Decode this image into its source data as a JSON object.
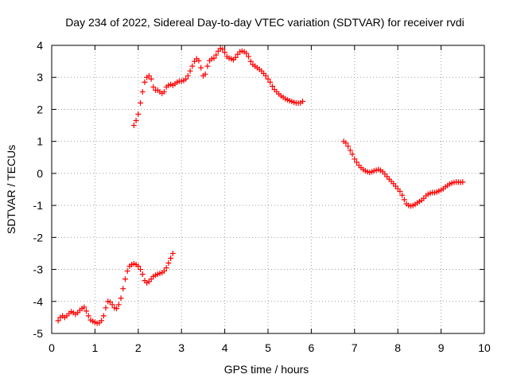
{
  "chart_data": {
    "type": "scatter",
    "title": "Day 234 of 2022, Sidereal Day-to-day VTEC variation (SDTVAR) for receiver rvdi",
    "xlabel": "GPS time / hours",
    "ylabel": "SDTVAR / TECUs",
    "xlim": [
      0,
      10
    ],
    "ylim": [
      -5,
      4
    ],
    "xticks": [
      "0",
      "1",
      "2",
      "3",
      "4",
      "5",
      "6",
      "7",
      "8",
      "9",
      "10"
    ],
    "yticks": [
      "-5",
      "-4",
      "-3",
      "-2",
      "-1",
      "0",
      "1",
      "2",
      "3",
      "4"
    ],
    "grid": true,
    "legend": "none",
    "marker": "plus",
    "color": "#ff0000",
    "series": [
      {
        "x": [
          0.15,
          0.2,
          0.25,
          0.3,
          0.35,
          0.4,
          0.45,
          0.5,
          0.55,
          0.6,
          0.65,
          0.7,
          0.75,
          0.8,
          0.85,
          0.9,
          0.95,
          1.0,
          1.05,
          1.1,
          1.15,
          1.2,
          1.25,
          1.3,
          1.35,
          1.4,
          1.45,
          1.5,
          1.55,
          1.6,
          1.65,
          1.7,
          1.75,
          1.8,
          1.85,
          1.9,
          1.95,
          2.0,
          2.05,
          2.1,
          2.15,
          2.2,
          2.25,
          2.3,
          2.35,
          2.4,
          2.45,
          2.5,
          2.55,
          2.6,
          2.65,
          2.7,
          2.75,
          2.8
        ],
        "y": [
          -4.6,
          -4.5,
          -4.45,
          -4.5,
          -4.45,
          -4.38,
          -4.32,
          -4.35,
          -4.4,
          -4.35,
          -4.28,
          -4.22,
          -4.18,
          -4.3,
          -4.45,
          -4.58,
          -4.62,
          -4.65,
          -4.68,
          -4.67,
          -4.6,
          -4.45,
          -4.2,
          -4.0,
          -4.02,
          -4.1,
          -4.2,
          -4.22,
          -4.1,
          -3.9,
          -3.6,
          -3.3,
          -3.05,
          -2.9,
          -2.85,
          -2.82,
          -2.85,
          -2.9,
          -3.0,
          -3.15,
          -3.35,
          -3.42,
          -3.38,
          -3.3,
          -3.22,
          -3.18,
          -3.15,
          -3.12,
          -3.1,
          -3.05,
          -2.95,
          -2.8,
          -2.65,
          -2.5
        ]
      },
      {
        "x": [
          1.9,
          1.95,
          2.0,
          2.05,
          2.1,
          2.15,
          2.2,
          2.25,
          2.3,
          2.35,
          2.4,
          2.45,
          2.5,
          2.55,
          2.6,
          2.65,
          2.7,
          2.75,
          2.8,
          2.85,
          2.9,
          2.95,
          3.0,
          3.05,
          3.1,
          3.15,
          3.2,
          3.25,
          3.3,
          3.35,
          3.4,
          3.45,
          3.5,
          3.55,
          3.6,
          3.65,
          3.7,
          3.75,
          3.8,
          3.85,
          3.9,
          3.95,
          4.0,
          4.05,
          4.1,
          4.15,
          4.2,
          4.25,
          4.3,
          4.35,
          4.4,
          4.45,
          4.5,
          4.55,
          4.6,
          4.65,
          4.7,
          4.75,
          4.8,
          4.85,
          4.9,
          4.95,
          5.0,
          5.05,
          5.1,
          5.15,
          5.2,
          5.25,
          5.3,
          5.35,
          5.4,
          5.45,
          5.5,
          5.55,
          5.6,
          5.65,
          5.7,
          5.75,
          5.8
        ],
        "y": [
          1.5,
          1.65,
          1.85,
          2.2,
          2.55,
          2.85,
          3.0,
          3.05,
          2.95,
          2.7,
          2.6,
          2.6,
          2.55,
          2.5,
          2.55,
          2.7,
          2.75,
          2.78,
          2.75,
          2.8,
          2.85,
          2.88,
          2.88,
          2.9,
          2.95,
          3.05,
          3.2,
          3.35,
          3.5,
          3.58,
          3.52,
          3.3,
          3.05,
          3.1,
          3.35,
          3.52,
          3.58,
          3.6,
          3.7,
          3.82,
          3.9,
          3.88,
          3.78,
          3.65,
          3.6,
          3.58,
          3.55,
          3.62,
          3.72,
          3.8,
          3.82,
          3.8,
          3.75,
          3.65,
          3.5,
          3.4,
          3.35,
          3.3,
          3.25,
          3.2,
          3.12,
          3.05,
          2.95,
          2.85,
          2.72,
          2.62,
          2.55,
          2.48,
          2.42,
          2.38,
          2.33,
          2.3,
          2.27,
          2.25,
          2.22,
          2.2,
          2.2,
          2.2,
          2.25
        ]
      },
      {
        "x": [
          6.75,
          6.8,
          6.85,
          6.9,
          6.95,
          7.0,
          7.05,
          7.1,
          7.15,
          7.2,
          7.25,
          7.3,
          7.35,
          7.4,
          7.45,
          7.5,
          7.55,
          7.6,
          7.65,
          7.7,
          7.75,
          7.8,
          7.85,
          7.9,
          7.95,
          8.0,
          8.05,
          8.1,
          8.15,
          8.2,
          8.25,
          8.3,
          8.35,
          8.4,
          8.45,
          8.5,
          8.55,
          8.6,
          8.65,
          8.7,
          8.75,
          8.8,
          8.85,
          8.9,
          8.95,
          9.0,
          9.05,
          9.1,
          9.15,
          9.2,
          9.25,
          9.3,
          9.35,
          9.4,
          9.45,
          9.5
        ],
        "y": [
          1.0,
          0.95,
          0.85,
          0.72,
          0.6,
          0.45,
          0.35,
          0.25,
          0.18,
          0.12,
          0.08,
          0.05,
          0.03,
          0.05,
          0.08,
          0.1,
          0.12,
          0.1,
          0.05,
          -0.02,
          -0.1,
          -0.18,
          -0.25,
          -0.32,
          -0.4,
          -0.48,
          -0.56,
          -0.68,
          -0.82,
          -0.95,
          -1.0,
          -1.02,
          -1.0,
          -0.97,
          -0.92,
          -0.88,
          -0.84,
          -0.78,
          -0.7,
          -0.65,
          -0.62,
          -0.6,
          -0.6,
          -0.58,
          -0.55,
          -0.52,
          -0.48,
          -0.42,
          -0.38,
          -0.33,
          -0.3,
          -0.28,
          -0.27,
          -0.27,
          -0.28,
          -0.27
        ]
      }
    ]
  }
}
